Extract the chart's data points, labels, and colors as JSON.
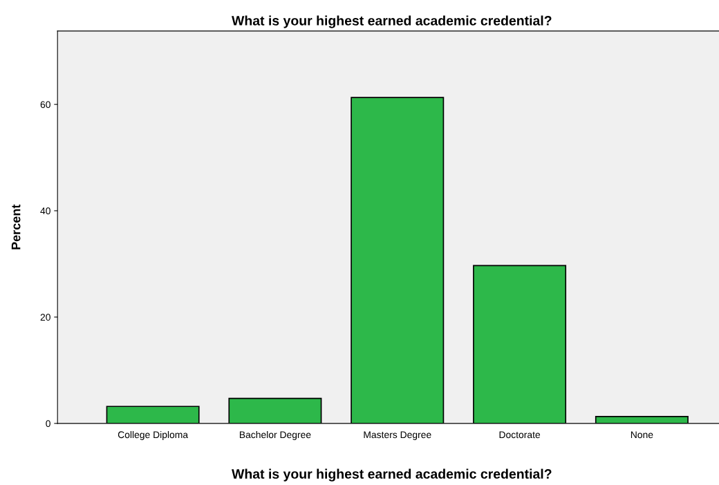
{
  "chart_data": {
    "type": "bar",
    "title": "What is your highest earned academic credential?",
    "xlabel": "What is your highest earned academic credential?",
    "ylabel": "Percent",
    "categories": [
      "College Diploma",
      "Bachelor Degree",
      "Masters Degree",
      "Doctorate",
      "None"
    ],
    "values": [
      3.2,
      4.7,
      61.3,
      29.7,
      1.3
    ],
    "color": "#2db84a",
    "ylim": [
      0,
      73.8
    ],
    "yticks": [
      0,
      20,
      40,
      60
    ],
    "grid": false,
    "legend": false
  }
}
